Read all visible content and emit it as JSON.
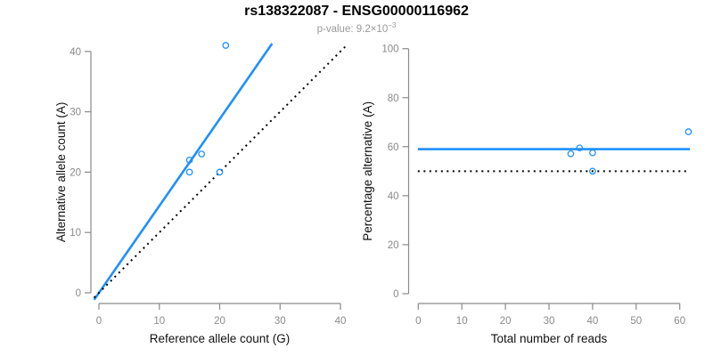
{
  "colors": {
    "accent_blue": "#1E90FF",
    "axis_gray": "#8a8a8a",
    "tick_label_gray": "#8a8a8a",
    "axis_title_dark": "#111111",
    "title_black": "#000000",
    "subtitle_gray": "#999999",
    "dotted_black": "#000000"
  },
  "chart_data": {
    "title": "rs138322087 - ENSG00000116962",
    "subtitle_prefix": "p-value: 9.2×10",
    "subtitle_exponent": "−3",
    "subtitle_text": "p-value: 9.2×10−3",
    "panels": [
      {
        "type": "scatter",
        "xlabel": "Reference allele count (G)",
        "ylabel": "Alternative allele count (A)",
        "xlim": [
          0,
          40
        ],
        "ylim": [
          0,
          41
        ],
        "xticks": [
          0,
          10,
          20,
          30,
          40
        ],
        "yticks": [
          0,
          10,
          20,
          30,
          40
        ],
        "grid": false,
        "points": [
          [
            15,
            22
          ],
          [
            17,
            23
          ],
          [
            15,
            20
          ],
          [
            20,
            20
          ],
          [
            21,
            41
          ]
        ],
        "lines": [
          {
            "name": "fitted-line",
            "style": "solid",
            "slope": 1.44,
            "intercept": 0
          },
          {
            "name": "identity-line",
            "style": "dotted",
            "slope": 1,
            "intercept": 0
          }
        ]
      },
      {
        "type": "scatter",
        "xlabel": "Total number of reads",
        "ylabel": "Percentage alternative (A)",
        "xlim": [
          0,
          62
        ],
        "ylim": [
          0,
          100
        ],
        "xticks": [
          0,
          10,
          20,
          30,
          40,
          50,
          60
        ],
        "yticks": [
          0,
          20,
          40,
          60,
          80,
          100
        ],
        "grid": false,
        "points": [
          [
            35,
            57.1
          ],
          [
            37,
            59.5
          ],
          [
            40,
            57.5
          ],
          [
            40,
            50
          ],
          [
            62,
            66.1
          ]
        ],
        "lines": [
          {
            "name": "fitted-percentage-line",
            "style": "solid",
            "hline": 59
          },
          {
            "name": "fifty-percent-line",
            "style": "dotted",
            "hline": 50
          }
        ]
      }
    ]
  }
}
